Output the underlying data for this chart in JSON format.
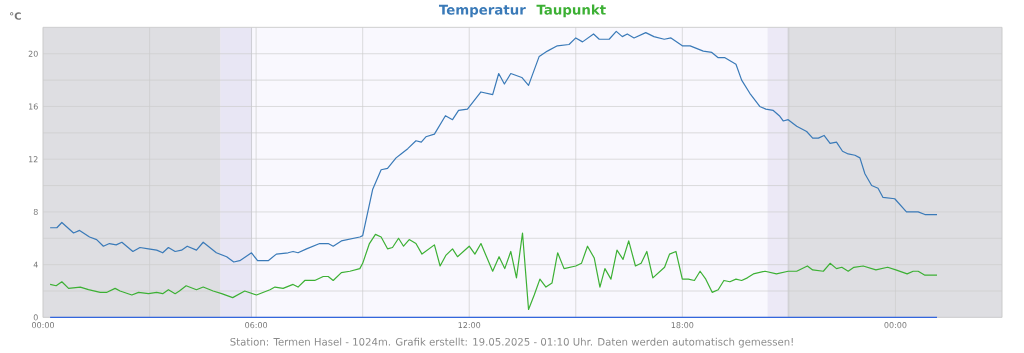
{
  "chart_data": {
    "type": "line",
    "ylabel": "°C",
    "annotations": [
      "Station: Termen Hasel - 1024m. Grafik erstellt: 19.05.2025 - 01:10 Uhr. Daten werden automatisch gemessen!"
    ],
    "xlim": [
      0,
      27
    ],
    "ylim": [
      0,
      22
    ],
    "xticks": [
      {
        "value": 0,
        "label": "00:00"
      },
      {
        "value": 3,
        "label": null
      },
      {
        "value": 6,
        "label": "06:00"
      },
      {
        "value": 9,
        "label": null
      },
      {
        "value": 12,
        "label": "12:00"
      },
      {
        "value": 15,
        "label": null
      },
      {
        "value": 18,
        "label": "18:00"
      },
      {
        "value": 21,
        "label": null
      },
      {
        "value": 24,
        "label": "00:00"
      },
      {
        "value": 27,
        "label": null
      }
    ],
    "yticks": [
      0,
      {
        "value": 2,
        "label": null
      },
      4,
      {
        "value": 6,
        "label": null
      },
      8,
      {
        "value": 10,
        "label": null
      },
      12,
      {
        "value": 14,
        "label": null
      },
      16,
      {
        "value": 18,
        "label": null
      },
      20,
      {
        "value": 22,
        "label": null
      }
    ],
    "grid": true,
    "legend": "top",
    "bands": [
      {
        "axis": "x",
        "from": 0,
        "to": 5.0,
        "color": "#dedee2"
      },
      {
        "axis": "x",
        "from": 5.0,
        "to": 5.87,
        "color": "#e8e6f4"
      },
      {
        "axis": "x",
        "from": 20.4,
        "to": 20.98,
        "color": "#ece9f6"
      },
      {
        "axis": "x",
        "from": 20.98,
        "to": 27,
        "color": "#dedee2"
      }
    ],
    "ref_lines": [
      {
        "axis": "x",
        "value": 5.87,
        "color": "#cfcfd6"
      },
      {
        "axis": "x",
        "value": 20.98,
        "color": "#cfcfd6"
      }
    ],
    "series": [
      {
        "name": "Temperatur",
        "color": "#3a7ab8",
        "x": [
          0.2,
          0.39,
          0.53,
          0.86,
          1.03,
          1.31,
          1.51,
          1.7,
          1.87,
          2.06,
          2.22,
          2.53,
          2.73,
          2.97,
          3.2,
          3.37,
          3.53,
          3.72,
          3.9,
          4.06,
          4.32,
          4.51,
          4.88,
          5.17,
          5.37,
          5.54,
          5.87,
          6.04,
          6.34,
          6.57,
          6.9,
          7.04,
          7.18,
          7.42,
          7.79,
          8.03,
          8.17,
          8.4,
          8.92,
          9.0,
          9.28,
          9.52,
          9.7,
          9.94,
          10.08,
          10.27,
          10.5,
          10.65,
          10.78,
          11.02,
          11.33,
          11.53,
          11.7,
          11.95,
          12.33,
          12.66,
          12.83,
          12.99,
          13.17,
          13.48,
          13.67,
          13.97,
          14.2,
          14.48,
          14.81,
          15.0,
          15.19,
          15.5,
          15.66,
          15.94,
          16.14,
          16.31,
          16.45,
          16.64,
          16.97,
          17.2,
          17.49,
          17.68,
          18.0,
          18.22,
          18.59,
          18.83,
          19.01,
          19.2,
          19.51,
          19.67,
          19.9,
          20.18,
          20.35,
          20.56,
          20.73,
          20.84,
          20.98,
          21.22,
          21.5,
          21.67,
          21.83,
          21.99,
          22.16,
          22.34,
          22.51,
          22.67,
          22.86,
          23.0,
          23.14,
          23.33,
          23.51,
          23.65,
          23.98,
          24.31,
          24.64,
          24.83,
          25.17
        ],
        "values": [
          6.8,
          6.8,
          7.2,
          6.4,
          6.6,
          6.1,
          5.9,
          5.4,
          5.6,
          5.5,
          5.7,
          5.0,
          5.3,
          5.2,
          5.1,
          4.9,
          5.3,
          5.0,
          5.1,
          5.4,
          5.1,
          5.7,
          4.9,
          4.6,
          4.2,
          4.3,
          4.9,
          4.3,
          4.3,
          4.8,
          4.9,
          5.0,
          4.9,
          5.2,
          5.6,
          5.6,
          5.4,
          5.8,
          6.1,
          6.2,
          9.7,
          11.2,
          11.3,
          12.1,
          12.4,
          12.8,
          13.4,
          13.3,
          13.7,
          13.9,
          15.3,
          15.0,
          15.7,
          15.8,
          17.1,
          16.9,
          18.5,
          17.7,
          18.5,
          18.2,
          17.6,
          19.8,
          20.2,
          20.6,
          20.7,
          21.2,
          20.9,
          21.5,
          21.1,
          21.1,
          21.7,
          21.3,
          21.5,
          21.2,
          21.6,
          21.3,
          21.1,
          21.2,
          20.6,
          20.6,
          20.2,
          20.1,
          19.7,
          19.7,
          19.2,
          18.0,
          17.0,
          16.0,
          15.8,
          15.7,
          15.3,
          14.9,
          15.0,
          14.5,
          14.1,
          13.6,
          13.6,
          13.8,
          13.2,
          13.3,
          12.6,
          12.4,
          12.3,
          12.1,
          10.9,
          10.0,
          9.8,
          9.1,
          9.0,
          8.0,
          8.0,
          7.8,
          7.8
        ]
      },
      {
        "name": "Taupunkt",
        "color": "#3cb034",
        "x": [
          0.2,
          0.37,
          0.53,
          0.72,
          1.05,
          1.28,
          1.61,
          1.8,
          2.03,
          2.17,
          2.5,
          2.69,
          2.97,
          3.2,
          3.37,
          3.53,
          3.72,
          3.84,
          4.03,
          4.32,
          4.51,
          4.79,
          5.03,
          5.34,
          5.68,
          6.01,
          6.39,
          6.53,
          6.76,
          7.04,
          7.18,
          7.37,
          7.65,
          7.89,
          8.03,
          8.17,
          8.4,
          8.64,
          8.92,
          9.0,
          9.19,
          9.36,
          9.52,
          9.7,
          9.84,
          10.01,
          10.15,
          10.31,
          10.5,
          10.67,
          11.02,
          11.18,
          11.34,
          11.53,
          11.67,
          12.0,
          12.16,
          12.33,
          12.66,
          12.84,
          13.0,
          13.17,
          13.33,
          13.5,
          13.67,
          13.83,
          13.99,
          14.16,
          14.33,
          14.49,
          14.67,
          15.0,
          15.16,
          15.33,
          15.52,
          15.68,
          15.82,
          15.99,
          16.16,
          16.33,
          16.49,
          16.68,
          16.84,
          17.0,
          17.17,
          17.5,
          17.64,
          17.82,
          18.0,
          18.17,
          18.34,
          18.5,
          18.66,
          18.84,
          19.01,
          19.17,
          19.34,
          19.51,
          19.67,
          19.83,
          20.0,
          20.33,
          20.65,
          20.98,
          21.22,
          21.52,
          21.67,
          21.97,
          22.16,
          22.34,
          22.49,
          22.67,
          22.83,
          23.09,
          23.45,
          23.78,
          24.01,
          24.33,
          24.5,
          24.64,
          24.83,
          25.17
        ],
        "values": [
          2.5,
          2.4,
          2.7,
          2.2,
          2.3,
          2.1,
          1.9,
          1.9,
          2.2,
          2.0,
          1.7,
          1.9,
          1.8,
          1.9,
          1.8,
          2.1,
          1.8,
          2.0,
          2.4,
          2.1,
          2.3,
          2.0,
          1.8,
          1.5,
          2.0,
          1.7,
          2.1,
          2.3,
          2.2,
          2.5,
          2.3,
          2.8,
          2.8,
          3.1,
          3.1,
          2.8,
          3.4,
          3.5,
          3.7,
          4.1,
          5.6,
          6.3,
          6.1,
          5.2,
          5.3,
          6.0,
          5.4,
          5.9,
          5.6,
          4.8,
          5.5,
          3.9,
          4.7,
          5.2,
          4.6,
          5.4,
          4.8,
          5.6,
          3.5,
          4.6,
          3.7,
          5.0,
          3.0,
          6.4,
          0.6,
          1.7,
          2.9,
          2.3,
          2.6,
          4.9,
          3.7,
          3.9,
          4.1,
          5.4,
          4.5,
          2.3,
          3.7,
          2.9,
          5.1,
          4.4,
          5.8,
          3.9,
          4.1,
          5.0,
          3.0,
          3.8,
          4.8,
          5.0,
          2.9,
          2.9,
          2.8,
          3.5,
          2.9,
          1.9,
          2.1,
          2.8,
          2.7,
          2.9,
          2.8,
          3.0,
          3.3,
          3.5,
          3.3,
          3.5,
          3.5,
          3.9,
          3.6,
          3.5,
          4.1,
          3.7,
          3.8,
          3.5,
          3.8,
          3.9,
          3.6,
          3.8,
          3.6,
          3.3,
          3.5,
          3.5,
          3.2,
          3.2
        ]
      },
      {
        "color": "#3366dd",
        "x": [
          0.2,
          25.17
        ],
        "values": [
          0,
          0
        ]
      }
    ]
  }
}
